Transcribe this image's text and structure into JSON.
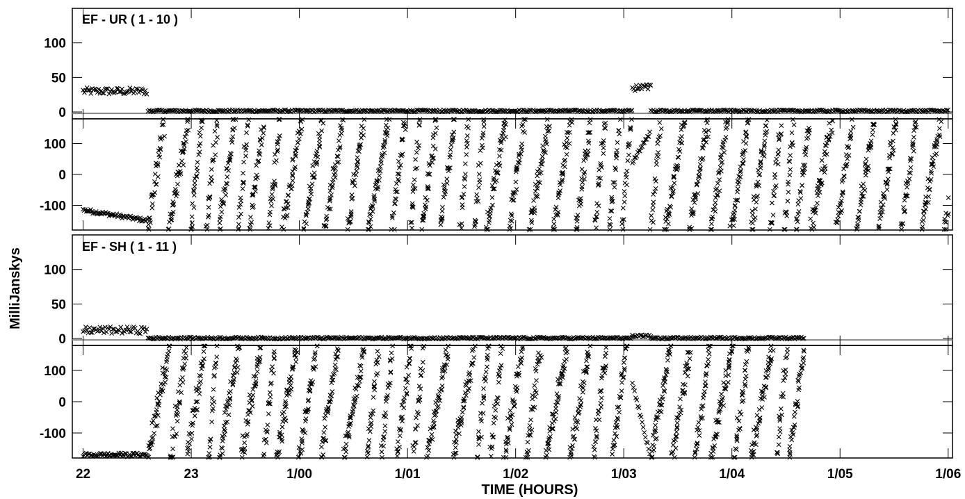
{
  "chart_data": {
    "type": "scatter",
    "ylabel": "MilliJanskys",
    "xlabel": "TIME (HOURS)",
    "x_ticks": [
      "22",
      "23",
      "1/00",
      "1/01",
      "1/02",
      "1/03",
      "1/04",
      "1/05",
      "1/06"
    ],
    "x_range_hours": [
      21.9,
      30.04
    ],
    "panels": [
      {
        "title": "EF - UR ( 1 - 10 )",
        "amp": {
          "yticks": [
            "100",
            "50",
            "0"
          ],
          "ylim": [
            -10,
            150
          ]
        },
        "phase": {
          "yticks": [
            "100",
            "0",
            "-100"
          ],
          "ylim": [
            -180,
            180
          ]
        },
        "series": [
          {
            "x": [
              22.0,
              22.6
            ],
            "amp": 30,
            "phase_start": -115,
            "phase_end": -150
          },
          {
            "x": [
              22.6,
              27.08
            ],
            "amp": 1,
            "phase": "wrapping (-180 to 180)"
          },
          {
            "x": [
              27.08,
              27.25
            ],
            "amp": 35,
            "phase": "rising"
          },
          {
            "x": [
              27.25,
              30.0
            ],
            "amp": 1,
            "phase": "wrapping (-180 to 180)"
          }
        ]
      },
      {
        "title": "EF - SH ( 1 - 11 )",
        "amp": {
          "yticks": [
            "100",
            "50",
            "0"
          ],
          "ylim": [
            -10,
            150
          ]
        },
        "phase": {
          "yticks": [
            "100",
            "0",
            "-100"
          ],
          "ylim": [
            -180,
            180
          ]
        },
        "series": [
          {
            "x": [
              22.0,
              22.6
            ],
            "amp": 12,
            "phase": "near -170 / +150"
          },
          {
            "x": [
              22.6,
              27.08
            ],
            "amp": 0,
            "phase": "wrapping (-180 to 180)"
          },
          {
            "x": [
              27.08,
              27.25
            ],
            "amp": 3,
            "phase": "falling"
          },
          {
            "x": [
              27.25,
              28.67
            ],
            "amp": 0,
            "phase": "wrapping (-180 to 180)"
          }
        ]
      }
    ]
  }
}
